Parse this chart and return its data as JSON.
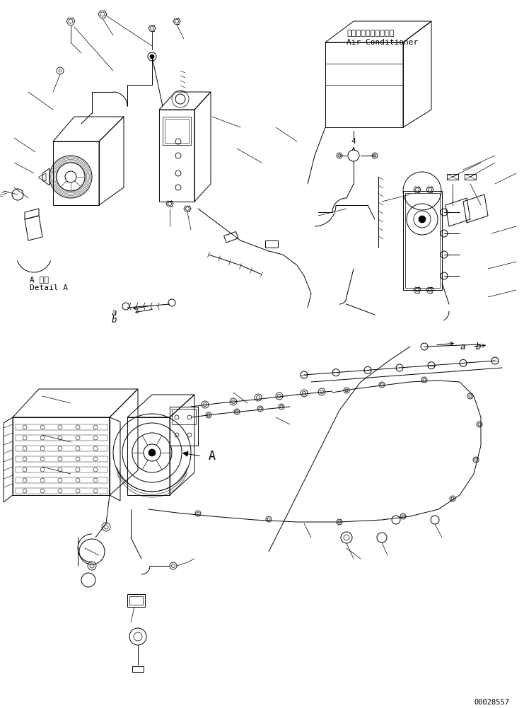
{
  "bg_color": "#ffffff",
  "line_color": "#000000",
  "label_air_conditioner_jp": "エアーコンディショナ",
  "label_air_conditioner_en": "Air Conditioner",
  "label_detail_jp": "A 詳細",
  "label_detail_en": "Detail A",
  "label_a_top": "a",
  "label_b_top": "b",
  "label_a_bottom": "a",
  "label_b_bottom": "b",
  "label_A_arrow": "A",
  "label_4": "4",
  "part_number": "00028557",
  "font_size_labels": 8,
  "font_size_small": 7,
  "font_size_part": 7,
  "lw": 0.7
}
